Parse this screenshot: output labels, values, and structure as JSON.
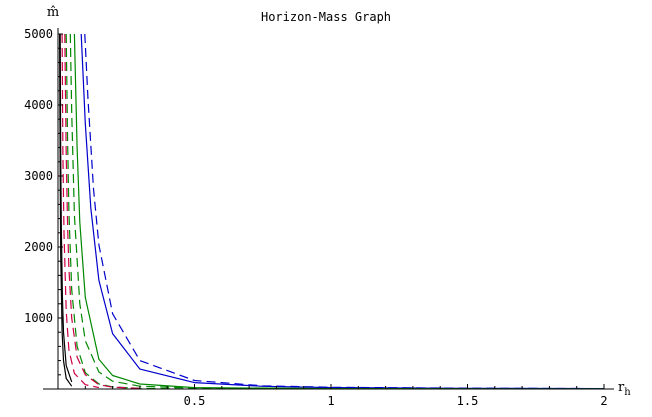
{
  "chart_data": {
    "type": "line",
    "title": "Horizon-Mass Graph",
    "xlabel": {
      "main": "r",
      "sub": "h"
    },
    "ylabel": "m̂",
    "xlim": [
      0,
      2
    ],
    "ylim": [
      0,
      5000
    ],
    "xticks": [
      0.5,
      1,
      1.5,
      2
    ],
    "xtick_labels": [
      "0.5",
      "1",
      "1.5",
      "2"
    ],
    "yticks": [
      1000,
      2000,
      3000,
      4000,
      5000
    ],
    "ytick_labels": [
      "1000",
      "2000",
      "3000",
      "4000",
      "5000"
    ],
    "grid": false,
    "legend": "none",
    "series": [
      {
        "color": "#0000cc",
        "dash": "solid",
        "x": [
          0.085,
          0.1,
          0.12,
          0.15,
          0.2,
          0.3,
          0.5,
          0.75,
          1.0,
          1.5,
          2.0
        ],
        "y": [
          5000,
          3740,
          2550,
          1530,
          780,
          280,
          90,
          38,
          20,
          10,
          5
        ]
      },
      {
        "color": "#0000cc",
        "dash": "dashed",
        "x": [
          0.098,
          0.11,
          0.13,
          0.15,
          0.2,
          0.3,
          0.5,
          0.75,
          1.0,
          1.5,
          2.0
        ],
        "y": [
          5000,
          4080,
          2820,
          2030,
          1060,
          400,
          120,
          45,
          24,
          11,
          6
        ]
      },
      {
        "color": "#008800",
        "dash": "solid",
        "x": [
          0.06,
          0.07,
          0.08,
          0.1,
          0.15,
          0.2,
          0.3,
          0.5,
          1.0,
          2.0
        ],
        "y": [
          5000,
          3400,
          2350,
          1290,
          420,
          190,
          70,
          20,
          5,
          1
        ]
      },
      {
        "color": "#008800",
        "dash": "dashed",
        "x": [
          0.045,
          0.05,
          0.06,
          0.08,
          0.1,
          0.15,
          0.2,
          0.3,
          0.5,
          1.0
        ],
        "y": [
          5000,
          3900,
          2450,
          1200,
          680,
          240,
          110,
          40,
          12,
          2
        ]
      },
      {
        "color": "#008800",
        "dash": "dashed",
        "x": [
          0.03,
          0.035,
          0.04,
          0.05,
          0.07,
          0.1,
          0.15,
          0.2,
          0.3,
          0.5
        ],
        "y": [
          5000,
          3500,
          2500,
          1400,
          600,
          230,
          70,
          30,
          9,
          2
        ]
      },
      {
        "color": "#cc0044",
        "dash": "dashed",
        "x": [
          0.025,
          0.03,
          0.035,
          0.04,
          0.05,
          0.07,
          0.1,
          0.15,
          0.2,
          0.3
        ],
        "y": [
          5000,
          3300,
          2300,
          1700,
          1000,
          450,
          200,
          60,
          25,
          8
        ]
      },
      {
        "color": "#cc0044",
        "dash": "dashed",
        "x": [
          0.015,
          0.018,
          0.022,
          0.03,
          0.04,
          0.06,
          0.1,
          0.15
        ],
        "y": [
          5000,
          3300,
          2200,
          1100,
          550,
          220,
          60,
          20
        ]
      },
      {
        "color": "#000000",
        "dash": "solid",
        "x": [
          0.006,
          0.008,
          0.01,
          0.015,
          0.02,
          0.03,
          0.05
        ],
        "y": [
          5000,
          3000,
          1900,
          800,
          400,
          150,
          40
        ]
      },
      {
        "color": "#000000",
        "dash": "solid",
        "x": [
          0.008,
          0.01,
          0.012,
          0.016,
          0.02,
          0.03,
          0.05
        ],
        "y": [
          5000,
          3300,
          2300,
          1300,
          800,
          330,
          100
        ]
      }
    ]
  }
}
